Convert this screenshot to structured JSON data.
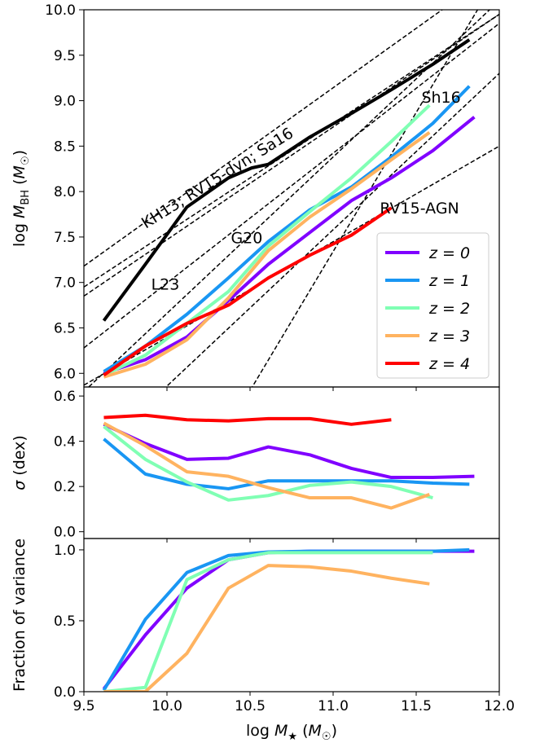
{
  "figure": {
    "xlabel": "log M★ (M☉)",
    "x_ticks": [
      "9.5",
      "10.0",
      "10.5",
      "11.0",
      "11.5",
      "12.0"
    ]
  },
  "chart_data": [
    {
      "type": "line",
      "panel": "top",
      "ylabel": "log MBH (M☉)",
      "xlim": [
        9.5,
        12.0
      ],
      "ylim": [
        5.85,
        10.0
      ],
      "y_ticks": [
        "6.0",
        "6.5",
        "7.0",
        "7.5",
        "8.0",
        "8.5",
        "9.0",
        "9.5",
        "10.0"
      ],
      "legend": {
        "placement": "bottom-right"
      },
      "series": [
        {
          "name": "z = 0",
          "color": "#8000ff",
          "x": [
            9.62,
            9.87,
            10.12,
            10.37,
            10.61,
            10.86,
            11.11,
            11.35,
            11.6,
            11.85
          ],
          "y": [
            6.0,
            6.15,
            6.4,
            6.8,
            7.2,
            7.55,
            7.9,
            8.15,
            8.45,
            8.82
          ]
        },
        {
          "name": "z = 1",
          "color": "#1996f3",
          "x": [
            9.62,
            9.87,
            10.12,
            10.37,
            10.61,
            10.86,
            11.11,
            11.35,
            11.6,
            11.82
          ],
          "y": [
            6.02,
            6.3,
            6.65,
            7.05,
            7.45,
            7.8,
            8.05,
            8.38,
            8.75,
            9.16
          ]
        },
        {
          "name": "z = 2",
          "color": "#80ffb4",
          "x": [
            9.62,
            9.87,
            10.12,
            10.37,
            10.61,
            10.86,
            11.11,
            11.35,
            11.58
          ],
          "y": [
            5.98,
            6.2,
            6.55,
            6.9,
            7.4,
            7.78,
            8.15,
            8.55,
            8.95
          ]
        },
        {
          "name": "z = 3",
          "color": "#ffb360",
          "x": [
            9.62,
            9.87,
            10.12,
            10.37,
            10.61,
            10.86,
            11.11,
            11.35,
            11.58
          ],
          "y": [
            5.96,
            6.1,
            6.37,
            6.83,
            7.35,
            7.72,
            8.03,
            8.35,
            8.65
          ]
        },
        {
          "name": "z = 4",
          "color": "#ff0000",
          "x": [
            9.62,
            9.87,
            10.12,
            10.37,
            10.61,
            10.86,
            11.11,
            11.35
          ],
          "y": [
            5.98,
            6.3,
            6.55,
            6.75,
            7.05,
            7.3,
            7.52,
            7.82
          ]
        },
        {
          "name": "",
          "color": "#000000",
          "x": [
            9.62,
            9.87,
            10.12,
            10.37,
            10.51,
            10.61,
            10.86,
            11.11,
            11.35,
            11.6,
            11.82
          ],
          "y": [
            6.58,
            7.2,
            7.83,
            8.15,
            8.26,
            8.3,
            8.6,
            8.86,
            9.12,
            9.4,
            9.67
          ]
        }
      ],
      "relations": [
        {
          "x": [
            9.5,
            12.0
          ],
          "y": [
            7.18,
            10.45
          ]
        },
        {
          "x": [
            9.5,
            12.0
          ],
          "y": [
            6.95,
            9.95
          ]
        },
        {
          "x": [
            9.5,
            12.0
          ],
          "y": [
            6.85,
            9.95
          ]
        },
        {
          "x": [
            9.5,
            12.0
          ],
          "y": [
            6.28,
            9.85
          ]
        },
        {
          "x": [
            9.5,
            12.0
          ],
          "y": [
            5.87,
            8.5
          ]
        },
        {
          "x": [
            9.5,
            12.0
          ],
          "y": [
            5.8,
            10.1
          ]
        },
        {
          "x": [
            9.5,
            12.0
          ],
          "y": [
            5.0,
            9.3
          ]
        },
        {
          "x": [
            9.5,
            12.0
          ],
          "y": [
            2.75,
            10.4
          ]
        }
      ],
      "annotations": [
        {
          "text": "KH13; RV15-dyn; Sa16",
          "x": 10.32,
          "y": 8.1,
          "rotate": -32
        },
        {
          "text": "Sh16",
          "x": 11.65,
          "y": 8.98,
          "rotate": 0
        },
        {
          "text": "RV15-AGN",
          "x": 11.52,
          "y": 7.76,
          "rotate": 0
        },
        {
          "text": "G20",
          "x": 10.48,
          "y": 7.43,
          "rotate": 0
        },
        {
          "text": "L23",
          "x": 9.99,
          "y": 6.92,
          "rotate": 0
        }
      ]
    },
    {
      "type": "line",
      "panel": "middle",
      "ylabel": "σ (dex)",
      "xlim": [
        9.5,
        12.0
      ],
      "ylim": [
        -0.03,
        0.64
      ],
      "y_ticks": [
        "0.0",
        "0.2",
        "0.4",
        "0.6"
      ],
      "series": [
        {
          "name": "z = 0",
          "color": "#8000ff",
          "x": [
            9.62,
            9.87,
            10.12,
            10.37,
            10.61,
            10.86,
            11.11,
            11.35,
            11.6,
            11.85
          ],
          "y": [
            0.475,
            0.39,
            0.32,
            0.325,
            0.375,
            0.34,
            0.28,
            0.24,
            0.24,
            0.245
          ]
        },
        {
          "name": "z = 1",
          "color": "#1996f3",
          "x": [
            9.62,
            9.87,
            10.12,
            10.37,
            10.61,
            10.86,
            11.11,
            11.35,
            11.6,
            11.82
          ],
          "y": [
            0.41,
            0.255,
            0.21,
            0.19,
            0.225,
            0.225,
            0.225,
            0.225,
            0.215,
            0.21
          ]
        },
        {
          "name": "z = 2",
          "color": "#80ffb4",
          "x": [
            9.62,
            9.87,
            10.12,
            10.37,
            10.61,
            10.86,
            11.11,
            11.35,
            11.6
          ],
          "y": [
            0.465,
            0.32,
            0.22,
            0.14,
            0.16,
            0.205,
            0.22,
            0.2,
            0.15
          ]
        },
        {
          "name": "z = 3",
          "color": "#ffb360",
          "x": [
            9.62,
            9.87,
            10.12,
            10.37,
            10.61,
            10.86,
            11.11,
            11.35,
            11.58
          ],
          "y": [
            0.48,
            0.38,
            0.265,
            0.245,
            0.195,
            0.15,
            0.15,
            0.105,
            0.165
          ]
        },
        {
          "name": "z = 4",
          "color": "#ff0000",
          "x": [
            9.62,
            9.87,
            10.12,
            10.37,
            10.61,
            10.86,
            11.11,
            11.35
          ],
          "y": [
            0.505,
            0.515,
            0.495,
            0.49,
            0.5,
            0.5,
            0.475,
            0.495
          ]
        }
      ]
    },
    {
      "type": "line",
      "panel": "bottom",
      "ylabel": "Fraction of variance",
      "xlim": [
        9.5,
        12.0
      ],
      "ylim": [
        0.0,
        1.08
      ],
      "y_ticks": [
        "0.0",
        "0.5",
        "1.0"
      ],
      "series": [
        {
          "name": "z = 0",
          "color": "#8000ff",
          "x": [
            9.62,
            9.87,
            10.12,
            10.37,
            10.61,
            10.86,
            11.11,
            11.35,
            11.6,
            11.85
          ],
          "y": [
            0.02,
            0.4,
            0.73,
            0.93,
            0.98,
            0.99,
            0.99,
            0.99,
            0.99,
            0.99
          ]
        },
        {
          "name": "z = 1",
          "color": "#1996f3",
          "x": [
            9.62,
            9.87,
            10.12,
            10.37,
            10.61,
            10.86,
            11.11,
            11.35,
            11.6,
            11.82
          ],
          "y": [
            0.01,
            0.51,
            0.84,
            0.96,
            0.985,
            0.99,
            0.99,
            0.99,
            0.99,
            1.0
          ]
        },
        {
          "name": "z = 2",
          "color": "#80ffb4",
          "x": [
            9.62,
            9.87,
            10.12,
            10.37,
            10.61,
            10.86,
            11.11,
            11.35,
            11.6
          ],
          "y": [
            0.0,
            0.03,
            0.79,
            0.93,
            0.98,
            0.98,
            0.98,
            0.98,
            0.98
          ]
        },
        {
          "name": "z = 3",
          "color": "#ffb360",
          "x": [
            9.62,
            9.87,
            10.12,
            10.37,
            10.61,
            10.86,
            11.11,
            11.35,
            11.58
          ],
          "y": [
            0.0,
            0.0,
            0.27,
            0.73,
            0.89,
            0.88,
            0.85,
            0.8,
            0.76
          ]
        }
      ]
    }
  ]
}
